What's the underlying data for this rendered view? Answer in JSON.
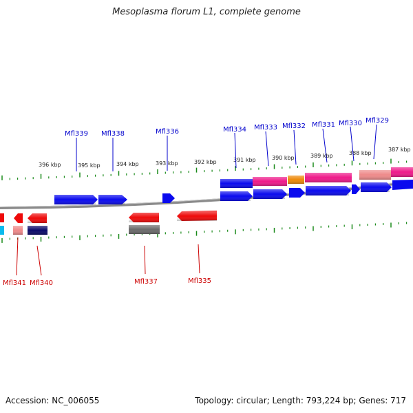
{
  "title": "Mesoplasma florum L1, complete genome",
  "footer": {
    "accession": "Accession: NC_006055",
    "summary": "Topology: circular; Length: 793,224 bp; Genes: 717"
  },
  "colors": {
    "forward_label": "#0000cc",
    "reverse_label": "#cc0000",
    "tick": "#1a8a1a",
    "backbone": "#8a8a8a",
    "blue": "#0a0aee",
    "red": "#ee0a0a",
    "magenta": "#ee1a8a",
    "orange": "#ee8a0a",
    "salmon": "#ee8a8a",
    "navy": "#0a0a6a",
    "gray": "#6a6a6a",
    "cyan": "#0abbee"
  },
  "kbp_labels": [
    "396 kbp",
    "395 kbp",
    "394 kbp",
    "393 kbp",
    "392 kbp",
    "391 kbp",
    "390 kbp",
    "389 kbp",
    "388 kbp",
    "387 kbp"
  ],
  "forward_genes": [
    "Mfl339",
    "Mfl338",
    "Mfl336",
    "Mfl334",
    "Mfl333",
    "Mfl332",
    "Mfl331",
    "Mfl330",
    "Mfl329"
  ],
  "reverse_genes": [
    "Mfl341",
    "Mfl340",
    "Mfl337",
    "Mfl335"
  ]
}
